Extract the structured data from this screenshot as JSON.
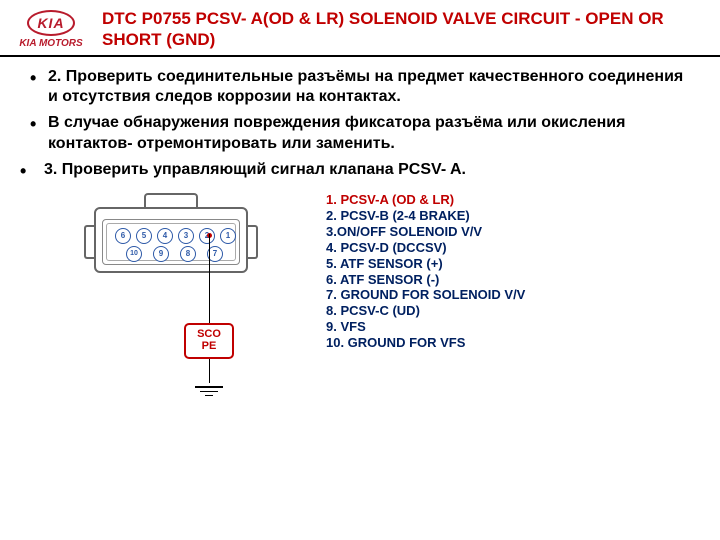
{
  "logo": {
    "brand": "KIA",
    "subtext": "KIA MOTORS"
  },
  "title": "DTC P0755 PCSV- A(OD & LR) SOLENOID VALVE CIRCUIT  - OPEN OR SHORT (GND)",
  "bullets_inner": [
    "2. Проверить соединительные разъёмы на предмет качественного соединения и отсутствия следов коррозии на контактах.",
    "В случае обнаружения повреждения фиксатора разъёма или окисления контактов- отремонтировать или заменить."
  ],
  "bullets_outer": [
    "3. Проверить управляющий сигнал клапана PCSV- A."
  ],
  "connector": {
    "pins_top": [
      "6",
      "5",
      "4",
      "3",
      "2",
      "1"
    ],
    "pins_bottom": [
      "10",
      "9",
      "8",
      "7"
    ],
    "scope_label": "SCOPE"
  },
  "legend": [
    {
      "text": "1. PCSV-A (OD & LR)",
      "red": true
    },
    {
      "text": "2. PCSV-B (2-4 BRAKE)"
    },
    {
      "text": "3.ON/OFF SOLENOID V/V"
    },
    {
      "text": "4. PCSV-D (DCCSV)"
    },
    {
      "text": "5. ATF SENSOR (+)"
    },
    {
      "text": "6. ATF SENSOR (-)"
    },
    {
      "text": "7. GROUND FOR SOLENOID V/V"
    },
    {
      "text": "8. PCSV-C (UD)"
    },
    {
      "text": "9. VFS"
    },
    {
      "text": "10. GROUND FOR VFS"
    }
  ],
  "colors": {
    "title": "#c00000",
    "legend_blue": "#002060",
    "legend_red": "#c00000",
    "kia_red": "#b81b2c",
    "pin_blue": "#2e5aa8"
  }
}
